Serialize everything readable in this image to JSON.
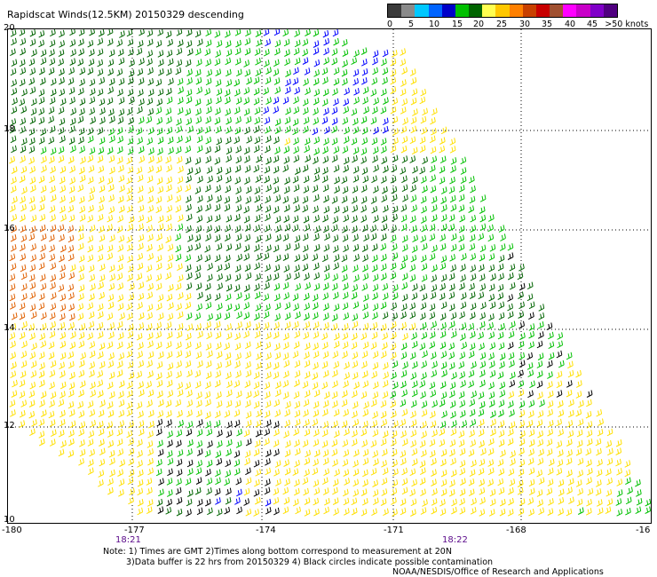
{
  "title": "Rapidscat Winds(12.5KM) 20150329 descending",
  "legend": {
    "colors": [
      "#3a3a3a",
      "#8a8a8a",
      "#00c8ff",
      "#0064ff",
      "#0000c8",
      "#00c000",
      "#006400",
      "#ffff50",
      "#ffc800",
      "#ff8000",
      "#c84000",
      "#c80000",
      "#a05030",
      "#ff00ff",
      "#c800c8",
      "#8000c8",
      "#500080"
    ],
    "labels": [
      "0",
      "5",
      "10",
      "15",
      "20",
      "25",
      "30",
      "35",
      "40",
      "45",
      ">50 knots"
    ]
  },
  "axes": {
    "x_labels": [
      "-180",
      "-177",
      "-174",
      "-171",
      "-168",
      "-16"
    ],
    "y_labels": [
      "20",
      "18",
      "16",
      "14",
      "12",
      "10"
    ]
  },
  "times": [
    "18:21",
    "18:22"
  ],
  "notes": [
    "Note: 1) Times are GMT 2)Times along bottom correspond to measurement at 20N",
    "3)Data buffer is 22 hrs from 20150329 4) Black circles indicate possible contamination",
    "NOAA/NESDIS/Office of Research and Applications"
  ],
  "wind_colors": {
    "yellow": "#ffe000",
    "dark_green": "#006400",
    "green": "#00c000",
    "blue": "#0000ff",
    "orange": "#e06000",
    "black": "#000000"
  }
}
